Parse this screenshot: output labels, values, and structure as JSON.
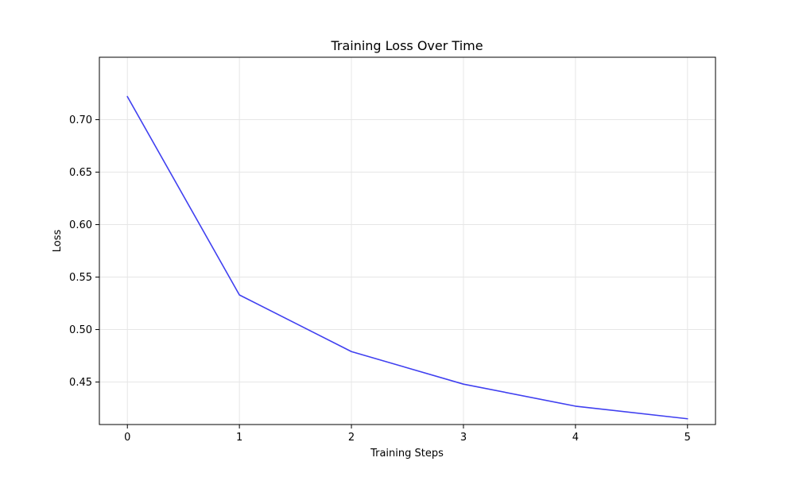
{
  "chart_data": {
    "type": "line",
    "title": "Training Loss Over Time",
    "xlabel": "Training Steps",
    "ylabel": "Loss",
    "x": [
      0,
      1,
      2,
      3,
      4,
      5
    ],
    "series": [
      {
        "values": [
          0.722,
          0.533,
          0.479,
          0.448,
          0.427,
          0.415
        ],
        "color": "#4040f0"
      }
    ],
    "xlim": [
      -0.25,
      5.25
    ],
    "ylim": [
      0.4095,
      0.7595
    ],
    "xticks": [
      0,
      1,
      2,
      3,
      4,
      5
    ],
    "xtick_labels": [
      "0",
      "1",
      "2",
      "3",
      "4",
      "5"
    ],
    "yticks": [
      0.45,
      0.5,
      0.55,
      0.6,
      0.65,
      0.7
    ],
    "ytick_labels": [
      "0.45",
      "0.50",
      "0.55",
      "0.60",
      "0.65",
      "0.70"
    ],
    "grid": true,
    "legend": false
  }
}
